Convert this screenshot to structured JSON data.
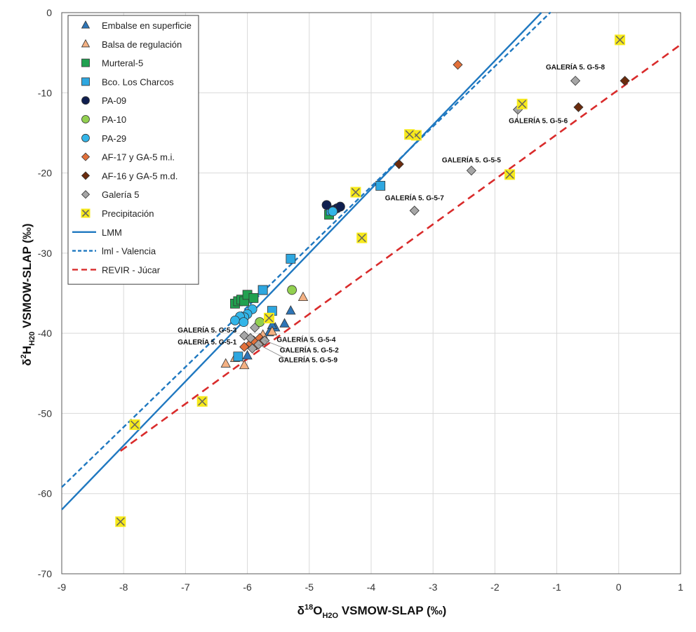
{
  "chart_data": {
    "type": "scatter",
    "xlabel": {
      "prefix": "δ",
      "sup": "18",
      "main": "O",
      "sub": "H2O",
      "suffix": " VSMOW-SLAP (‰)"
    },
    "ylabel": {
      "prefix": "δ",
      "sup": "2",
      "main": "H",
      "sub": "H20",
      "suffix": " VSMOW-SLAP (‰)"
    },
    "xlim": [
      -9,
      1
    ],
    "ylim": [
      -70,
      0
    ],
    "xticks": [
      -9,
      -8,
      -7,
      -6,
      -5,
      -4,
      -3,
      -2,
      -1,
      0,
      1
    ],
    "yticks": [
      -70,
      -60,
      -50,
      -40,
      -30,
      -20,
      -10,
      0
    ],
    "grid": true,
    "legend_position": "top-left",
    "series": [
      {
        "name": "Embalse en superficie",
        "marker": "triangle",
        "color": "#2e75b6",
        "points": [
          [
            -5.3,
            -37.2
          ],
          [
            -5.4,
            -38.8
          ],
          [
            -5.55,
            -39.3
          ],
          [
            -5.65,
            -39.9
          ],
          [
            -6.0,
            -42.8
          ],
          [
            -5.6,
            -39.0
          ]
        ]
      },
      {
        "name": "Balsa de regulación",
        "marker": "triangle",
        "color": "#f4b183",
        "points": [
          [
            -5.1,
            -35.5
          ],
          [
            -6.35,
            -43.8
          ],
          [
            -6.05,
            -44.0
          ],
          [
            -6.2,
            -43.1
          ],
          [
            -5.75,
            -40.2
          ],
          [
            -5.6,
            -39.8
          ]
        ]
      },
      {
        "name": "Murteral-5",
        "marker": "square",
        "color": "#21a150",
        "points": [
          [
            -4.68,
            -25.2
          ],
          [
            -6.2,
            -36.3
          ],
          [
            -6.15,
            -36.0
          ],
          [
            -6.1,
            -35.8
          ],
          [
            -6.05,
            -36.0
          ],
          [
            -6.0,
            -35.2
          ],
          [
            -5.9,
            -35.6
          ],
          [
            -5.75,
            -34.6
          ]
        ]
      },
      {
        "name": "Bco. Los Charcos",
        "marker": "square",
        "color": "#2ea7e0",
        "points": [
          [
            -3.85,
            -21.6
          ],
          [
            -4.65,
            -24.7
          ],
          [
            -5.3,
            -30.7
          ],
          [
            -5.75,
            -34.6
          ],
          [
            -5.6,
            -37.2
          ],
          [
            -6.15,
            -42.9
          ]
        ]
      },
      {
        "name": "PA-09",
        "marker": "circle",
        "color": "#0f1f4f",
        "points": [
          [
            -4.72,
            -24.0
          ],
          [
            -4.6,
            -24.6
          ],
          [
            -4.55,
            -24.4
          ],
          [
            -4.5,
            -24.2
          ]
        ]
      },
      {
        "name": "PA-10",
        "marker": "circle",
        "color": "#92d050",
        "points": [
          [
            -5.28,
            -34.6
          ],
          [
            -5.8,
            -38.6
          ]
        ]
      },
      {
        "name": "PA-29",
        "marker": "circle",
        "color": "#33b5e8",
        "points": [
          [
            -4.62,
            -24.8
          ],
          [
            -5.92,
            -37.0
          ],
          [
            -6.0,
            -37.6
          ],
          [
            -6.05,
            -38.0
          ],
          [
            -6.12,
            -37.9
          ],
          [
            -6.2,
            -38.4
          ],
          [
            -6.06,
            -38.6
          ]
        ]
      },
      {
        "name": "AF-17 y GA-5 m.i.",
        "marker": "diamond",
        "color": "#e2703a",
        "points": [
          [
            -2.6,
            -6.5
          ],
          [
            -6.05,
            -41.7
          ],
          [
            -5.95,
            -41.3
          ],
          [
            -5.85,
            -41.5
          ],
          [
            -5.9,
            -40.9
          ],
          [
            -5.8,
            -40.6
          ],
          [
            -5.75,
            -41.0
          ]
        ]
      },
      {
        "name": "AF-16 y GA-5 m.d.",
        "marker": "diamond",
        "color": "#6b2c0e",
        "points": [
          [
            -3.55,
            -18.9
          ],
          [
            -0.65,
            -11.8
          ],
          [
            0.1,
            -8.5
          ]
        ]
      },
      {
        "name": "Galería 5",
        "marker": "diamond",
        "color": "#a6a6a6",
        "points": [
          [
            -0.7,
            -8.5
          ],
          [
            -1.63,
            -12.1
          ],
          [
            -2.38,
            -19.7
          ],
          [
            -3.3,
            -24.7
          ],
          [
            -6.05,
            -40.3
          ],
          [
            -5.95,
            -40.6
          ],
          [
            -5.88,
            -39.3
          ],
          [
            -5.72,
            -40.9
          ],
          [
            -5.82,
            -41.4
          ],
          [
            -5.92,
            -41.9
          ]
        ]
      },
      {
        "name": "Precipitación",
        "marker": "x",
        "color": "#f7ea1b",
        "points": [
          [
            0.02,
            -3.4
          ],
          [
            -1.56,
            -11.4
          ],
          [
            -1.76,
            -20.2
          ],
          [
            -3.27,
            -15.3
          ],
          [
            -3.38,
            -15.2
          ],
          [
            -4.25,
            -22.4
          ],
          [
            -4.15,
            -28.1
          ],
          [
            -5.65,
            -38.1
          ],
          [
            -6.73,
            -48.5
          ],
          [
            -7.82,
            -51.4
          ],
          [
            -8.05,
            -63.5
          ]
        ]
      }
    ],
    "lines": [
      {
        "name": "LMM",
        "style": "solid",
        "color": "#1f78c0",
        "slope": 8,
        "intercept": 10,
        "x_range": [
          -9,
          -1.25
        ]
      },
      {
        "name": "lml - Valencia",
        "style": "dashed",
        "color": "#1f78c0",
        "slope": 7.5,
        "intercept": 8.3,
        "x_range": [
          -9,
          -1.1
        ]
      },
      {
        "name": "REVIR - Júcar",
        "style": "dashed",
        "color": "#d92b2b",
        "slope": 5.6,
        "intercept": -9.6,
        "x_range": [
          -8.05,
          1
        ]
      }
    ],
    "annotations": [
      {
        "text": "GALERÍA 5. G-5-8",
        "point": [
          -0.7,
          -8.5
        ],
        "at": [
          -0.7,
          -7.1
        ],
        "anchor": "middle",
        "leader": false
      },
      {
        "text": "GALERÍA 5. G-5-6",
        "point": [
          -1.63,
          -12.1
        ],
        "at": [
          -1.3,
          -13.8
        ],
        "anchor": "middle",
        "leader": true
      },
      {
        "text": "GALERÍA 5. G-5-5",
        "point": [
          -2.38,
          -19.7
        ],
        "at": [
          -2.38,
          -18.7
        ],
        "anchor": "middle",
        "leader": false
      },
      {
        "text": "GALERÍA 5. G-5-7",
        "point": [
          -3.3,
          -24.7
        ],
        "at": [
          -3.3,
          -23.4
        ],
        "anchor": "middle",
        "leader": false
      },
      {
        "text": "GALERÍA 5. G-5-3",
        "point": [
          -6.05,
          -40.3
        ],
        "at": [
          -6.65,
          -39.9
        ],
        "anchor": "middle",
        "leader": false
      },
      {
        "text": "GALERÍA 5. G-5-1",
        "point": [
          -5.95,
          -40.6
        ],
        "at": [
          -6.65,
          -41.4
        ],
        "anchor": "middle",
        "leader": false
      },
      {
        "text": "GALERÍA 5. G-5-4",
        "point": [
          -5.88,
          -39.3
        ],
        "at": [
          -5.05,
          -41.1
        ],
        "anchor": "middle",
        "leader": false
      },
      {
        "text": "GALERÍA 5. G-5-2",
        "point": [
          -5.72,
          -40.9
        ],
        "at": [
          -5.0,
          -42.4
        ],
        "anchor": "middle",
        "leader": true
      },
      {
        "text": "GALERÍA 5. G-5-9",
        "point": [
          -5.82,
          -41.4
        ],
        "at": [
          -5.02,
          -43.6
        ],
        "anchor": "middle",
        "leader": true
      }
    ]
  }
}
